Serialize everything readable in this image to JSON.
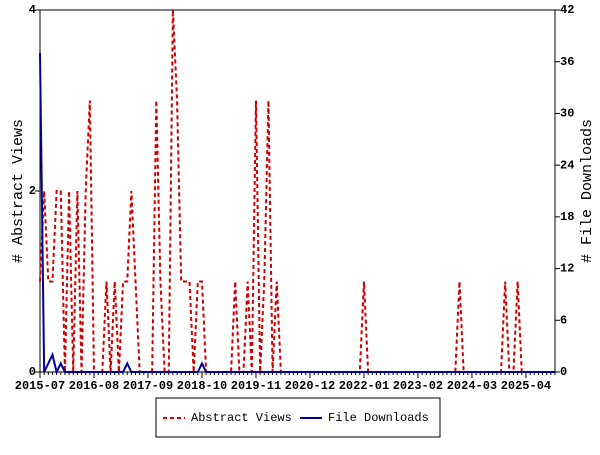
{
  "chart_data": {
    "type": "line",
    "y_label": "# Abstract Views",
    "y2_label": "# File Downloads",
    "categories": [
      "2015-07",
      null,
      null,
      null,
      null,
      null,
      null,
      null,
      null,
      null,
      null,
      null,
      null,
      "2016-08",
      null,
      null,
      null,
      null,
      null,
      null,
      null,
      null,
      null,
      null,
      null,
      null,
      "2017-09",
      null,
      null,
      null,
      null,
      null,
      null,
      null,
      null,
      null,
      null,
      null,
      null,
      "2018-10",
      null,
      null,
      null,
      null,
      null,
      null,
      null,
      null,
      null,
      null,
      null,
      null,
      "2019-11",
      null,
      null,
      null,
      null,
      null,
      null,
      null,
      null,
      null,
      null,
      null,
      null,
      "2020-12",
      null,
      null,
      null,
      null,
      null,
      null,
      null,
      null,
      null,
      null,
      null,
      null,
      "2022-01",
      null,
      null,
      null,
      null,
      null,
      null,
      null,
      null,
      null,
      null,
      null,
      null,
      "2023-02",
      null,
      null,
      null,
      null,
      null,
      null,
      null,
      null,
      null,
      null,
      null,
      null,
      "2024-03",
      null,
      null,
      null,
      null,
      null,
      null,
      null,
      null,
      null,
      null,
      null,
      null,
      "2025-04",
      null,
      null,
      null,
      null,
      null,
      null,
      null
    ],
    "series": [
      {
        "name": "Abstract Views",
        "color": "#cc0000",
        "dashed": true,
        "values": [
          1,
          2,
          1,
          1,
          2,
          2,
          0,
          2,
          0,
          2,
          0,
          2,
          3,
          0,
          0,
          0,
          1,
          0,
          1,
          0,
          1,
          1,
          2,
          1,
          0,
          0,
          0,
          0,
          3,
          1,
          0,
          0,
          4,
          3,
          1,
          1,
          1,
          0,
          1,
          1,
          0,
          0,
          0,
          0,
          0,
          0,
          0,
          1,
          0,
          0,
          1,
          0,
          3,
          0,
          1,
          3,
          0,
          1,
          0,
          0,
          0,
          0,
          0,
          0,
          0,
          0,
          0,
          0,
          0,
          0,
          0,
          0,
          0,
          0,
          0,
          0,
          0,
          0,
          1,
          0,
          0,
          0,
          0,
          0,
          0,
          0,
          0,
          0,
          0,
          0,
          0,
          0,
          0,
          0,
          0,
          0,
          0,
          0,
          0,
          0,
          0,
          1,
          0,
          0,
          0,
          0,
          0,
          0,
          0,
          0,
          0,
          0,
          1,
          0,
          0,
          1,
          0,
          0,
          0,
          0,
          0,
          0,
          0,
          0,
          0
        ]
      },
      {
        "name": "File Downloads",
        "color": "#000099",
        "axis": "y2",
        "values": [
          37,
          0,
          1,
          2,
          0,
          1,
          0,
          0,
          0,
          0,
          0,
          0,
          0,
          0,
          0,
          0,
          0,
          0,
          0,
          0,
          0,
          1,
          0,
          0,
          0,
          0,
          0,
          0,
          0,
          0,
          0,
          0,
          0,
          0,
          0,
          0,
          0,
          0,
          0,
          1,
          0,
          0,
          0,
          0,
          0,
          0,
          0,
          0,
          0,
          0,
          0,
          0,
          0,
          0,
          0,
          0,
          0,
          0,
          0,
          0,
          0,
          0,
          0,
          0,
          0,
          0,
          0,
          0,
          0,
          0,
          0,
          0,
          0,
          0,
          0,
          0,
          0,
          0,
          0,
          0,
          0,
          0,
          0,
          0,
          0,
          0,
          0,
          0,
          0,
          0,
          0,
          0,
          0,
          0,
          0,
          0,
          0,
          0,
          0,
          0,
          0,
          0,
          0,
          0,
          0,
          0,
          0,
          0,
          0,
          0,
          0,
          0,
          0,
          0,
          0,
          0,
          0,
          0,
          0,
          0,
          0,
          0,
          0,
          0,
          0
        ]
      }
    ],
    "ylim": [
      0,
      4
    ],
    "yticks": [
      0,
      2,
      4
    ],
    "y2lim": [
      0,
      42
    ],
    "y2ticks": [
      0,
      6,
      12,
      18,
      24,
      30,
      36,
      42
    ],
    "legend": "bottom"
  }
}
